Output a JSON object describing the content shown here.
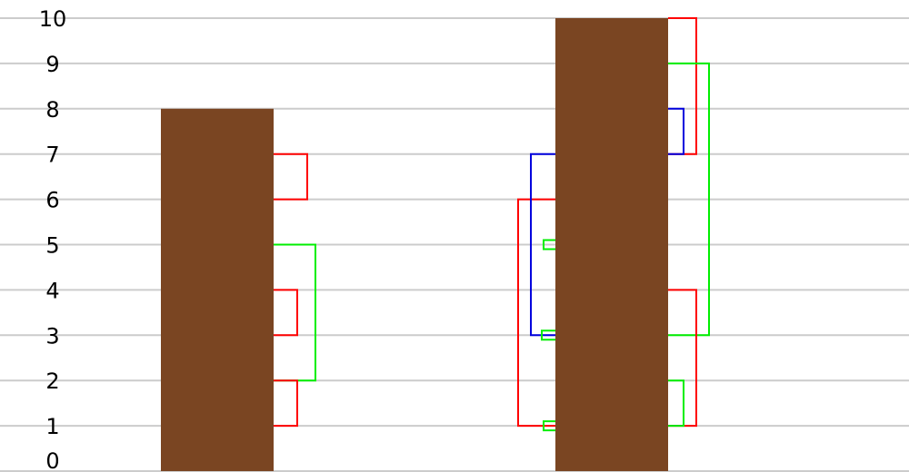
{
  "chart_data": {
    "type": "bar",
    "ylim": [
      0,
      10
    ],
    "yticks": [
      "0",
      "1",
      "2",
      "3",
      "4",
      "5",
      "6",
      "7",
      "8",
      "9",
      "10"
    ],
    "grid": true,
    "bar_color": "#7a4522",
    "bars": [
      {
        "x": 2.39,
        "value": 8
      },
      {
        "x": 6.73,
        "value": 10
      }
    ],
    "brackets": [
      {
        "bar": 0,
        "side": "right",
        "y0": 6,
        "y1": 7,
        "extent": 0.37,
        "color": "#ff0000"
      },
      {
        "bar": 0,
        "side": "right",
        "y0": 2,
        "y1": 5,
        "extent": 0.46,
        "color": "#00ee00"
      },
      {
        "bar": 0,
        "side": "right",
        "y0": 3,
        "y1": 4,
        "extent": 0.26,
        "color": "#ff0000"
      },
      {
        "bar": 0,
        "side": "right",
        "y0": 1,
        "y1": 2,
        "extent": 0.26,
        "color": "#ff0000"
      },
      {
        "bar": 1,
        "side": "right",
        "y0": 7,
        "y1": 10,
        "extent": 0.31,
        "color": "#ff0000"
      },
      {
        "bar": 1,
        "side": "right",
        "y0": 3,
        "y1": 9,
        "extent": 0.45,
        "color": "#00ee00"
      },
      {
        "bar": 1,
        "side": "right",
        "y0": 7,
        "y1": 8,
        "extent": 0.17,
        "color": "#0000dd"
      },
      {
        "bar": 1,
        "side": "right",
        "y0": 1,
        "y1": 4,
        "extent": 0.31,
        "color": "#ff0000"
      },
      {
        "bar": 1,
        "side": "right",
        "y0": 1,
        "y1": 2,
        "extent": 0.17,
        "color": "#00ee00"
      },
      {
        "bar": 1,
        "side": "left",
        "y0": 1,
        "y1": 6,
        "extent": 0.41,
        "color": "#ff0000"
      },
      {
        "bar": 1,
        "side": "left",
        "y0": 3,
        "y1": 7,
        "extent": 0.27,
        "color": "#0000dd"
      },
      {
        "bar": 1,
        "side": "left",
        "y0": 4.9,
        "y1": 5.1,
        "extent": 0.13,
        "color": "#00ee00"
      },
      {
        "bar": 1,
        "side": "left",
        "y0": 2.9,
        "y1": 3.1,
        "extent": 0.15,
        "color": "#00ee00"
      },
      {
        "bar": 1,
        "side": "left",
        "y0": 0.9,
        "y1": 1.1,
        "extent": 0.13,
        "color": "#00ee00"
      }
    ]
  }
}
